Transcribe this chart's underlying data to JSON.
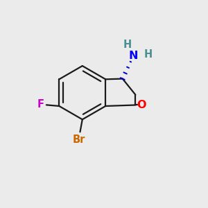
{
  "background_color": "#ebebeb",
  "bond_color": "#1a1a1a",
  "bond_lw": 1.6,
  "label_colors": {
    "O": "#ff0000",
    "N": "#0000ff",
    "H": "#4a9090",
    "Br": "#cc6600",
    "F": "#cc00cc"
  },
  "wedge_color": "#0000cc",
  "font_size": 10.5
}
